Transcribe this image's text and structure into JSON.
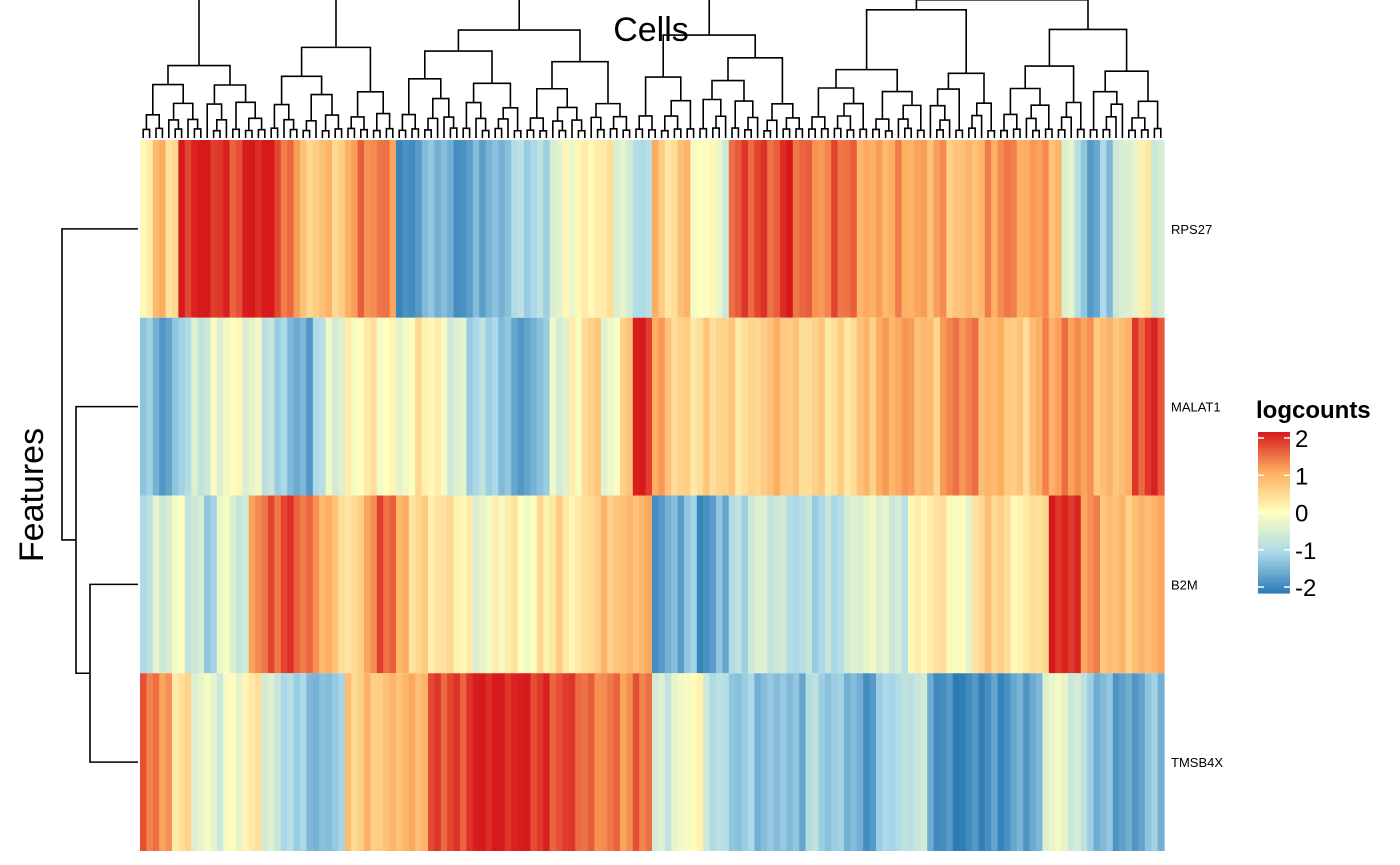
{
  "chart_data": {
    "type": "heatmap",
    "title": "Cells",
    "ylabel": "Features",
    "rows": [
      "RPS27",
      "MALAT1",
      "B2M",
      "TMSB4X"
    ],
    "n_columns": 160,
    "color_scale": {
      "name": "logcounts",
      "range": [
        -2,
        2
      ],
      "ticks": [
        2,
        1,
        0,
        -1,
        -2
      ],
      "colors": [
        "#2c7bb6",
        "#abd9e9",
        "#ffffbf",
        "#fdae61",
        "#d7191c"
      ]
    },
    "row_profiles": [
      [
        0.3,
        0.8,
        0.5,
        1.9,
        2.0,
        1.9,
        1.8,
        1.7,
        1.9,
        2.0,
        1.9,
        1.4,
        0.9,
        0.5,
        1.0,
        0.4,
        1.1,
        1.4,
        1.3,
        1.2,
        -1.9,
        -1.6,
        -1.4,
        -1.3,
        -1.6,
        -1.7,
        -1.5,
        -1.4,
        -1.2,
        -1.0,
        -1.0,
        -0.9,
        -0.4,
        -0.1,
        0.1,
        0.3,
        0.2,
        -0.3,
        -0.7,
        -0.9,
        0.8,
        0.3,
        1.0,
        -0.2,
        0.1,
        -0.4,
        1.5,
        1.6,
        1.7,
        1.6,
        1.8,
        1.5,
        1.4,
        1.2,
        1.5,
        1.4,
        1.1,
        0.9,
        1.0,
        1.2,
        1.0,
        0.9,
        1.1,
        0.8,
        0.7,
        0.9,
        1.2,
        1.3,
        1.1,
        1.0,
        1.3,
        0.7,
        -0.3,
        -1.0,
        -1.6,
        -1.2,
        -0.6,
        -0.2,
        0.1,
        -0.5
      ],
      [
        -1.3,
        -1.7,
        -1.0,
        -0.6,
        -0.2,
        -0.1,
        -0.3,
        -0.6,
        -1.2,
        -1.5,
        -0.9,
        -0.4,
        0.1,
        0.2,
        0.0,
        -0.1,
        0.3,
        0.1,
        -0.5,
        -1.0,
        -0.9,
        -1.4,
        -1.7,
        -1.2,
        -0.4,
        0.1,
        0.5,
        -0.2,
        0.8,
        1.9,
        1.0,
        0.5,
        0.4,
        0.6,
        0.5,
        0.4,
        0.7,
        0.8,
        0.6,
        0.5,
        0.4,
        0.5,
        0.7,
        1.0,
        1.1,
        0.9,
        0.7,
        1.2,
        1.3,
        1.0,
        0.8,
        0.6,
        0.9,
        1.1,
        1.3,
        1.0,
        0.8,
        0.9,
        1.6,
        1.8
      ],
      [
        -0.8,
        -0.4,
        -0.2,
        -0.6,
        -1.0,
        -0.3,
        -0.7,
        1.3,
        1.5,
        1.7,
        1.4,
        1.0,
        0.6,
        0.4,
        1.2,
        1.6,
        0.8,
        0.5,
        0.4,
        0.3,
        0.1,
        -0.2,
        0.0,
        0.2,
        -0.1,
        0.3,
        0.5,
        0.2,
        0.6,
        0.8,
        0.7,
        0.9,
        -1.6,
        -1.5,
        -1.2,
        -1.7,
        -1.4,
        -0.9,
        -0.5,
        -0.6,
        -0.7,
        -0.9,
        -1.0,
        -0.8,
        -0.6,
        -0.3,
        -0.2,
        -0.7,
        0.1,
        0.3,
        0.2,
        -0.1,
        0.4,
        0.6,
        0.3,
        0.2,
        0.5,
        2.0,
        1.7,
        1.2,
        0.9,
        0.7,
        0.8,
        1.0
      ],
      [
        1.5,
        1.0,
        0.4,
        -0.2,
        -0.5,
        -0.1,
        0.2,
        -0.4,
        -0.8,
        -1.2,
        -1.4,
        -1.1,
        0.6,
        0.8,
        0.7,
        0.9,
        1.0,
        1.6,
        1.7,
        1.9,
        2.0,
        2.0,
        1.9,
        1.8,
        1.7,
        1.6,
        1.4,
        1.3,
        1.2,
        1.5,
        -0.6,
        -0.3,
        0.1,
        -0.8,
        -1.0,
        -1.2,
        -1.3,
        -1.1,
        -1.4,
        -0.9,
        -1.2,
        -1.3,
        -1.6,
        -1.2,
        -0.9,
        -0.6,
        -1.7,
        -1.8,
        -1.9,
        -1.8,
        -1.7,
        -1.6,
        -1.5,
        -0.2,
        -0.5,
        -0.9,
        -1.4,
        -1.6,
        -1.5,
        -1.3
      ]
    ],
    "row_dendrogram": {
      "merges": [
        [
          2,
          3
        ],
        [
          1,
          "23"
        ],
        [
          0,
          "123"
        ]
      ]
    }
  }
}
